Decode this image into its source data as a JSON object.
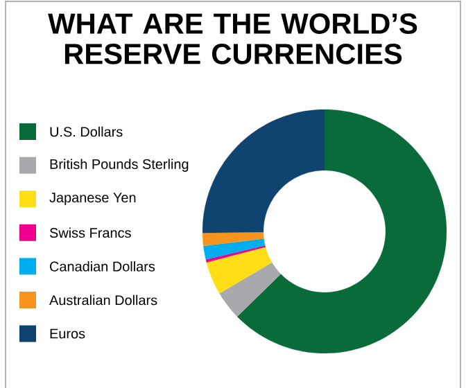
{
  "chart_data": {
    "type": "donut",
    "title": "WHAT ARE THE WORLD’S RESERVE CURRENCIES",
    "categories": [
      "U.S. Dollars",
      "British Pounds Sterling",
      "Japanese Yen",
      "Swiss Francs",
      "Canadian Dollars",
      "Australian Dollars",
      "Euros"
    ],
    "values": [
      62.7,
      3.8,
      4.4,
      0.4,
      1.8,
      1.7,
      25.2
    ],
    "colors": [
      "#0a6b3a",
      "#a7a9ac",
      "#ffde17",
      "#ec008c",
      "#00aeef",
      "#f7941d",
      "#0f4471"
    ],
    "legend": "left"
  }
}
